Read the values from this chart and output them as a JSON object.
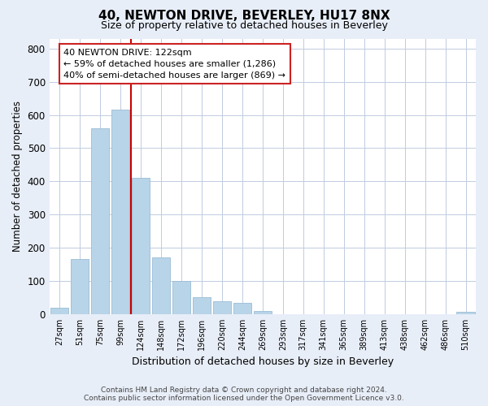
{
  "title": "40, NEWTON DRIVE, BEVERLEY, HU17 8NX",
  "subtitle": "Size of property relative to detached houses in Beverley",
  "xlabel": "Distribution of detached houses by size in Beverley",
  "ylabel": "Number of detached properties",
  "bar_labels": [
    "27sqm",
    "51sqm",
    "75sqm",
    "99sqm",
    "124sqm",
    "148sqm",
    "172sqm",
    "196sqm",
    "220sqm",
    "244sqm",
    "269sqm",
    "293sqm",
    "317sqm",
    "341sqm",
    "365sqm",
    "389sqm",
    "413sqm",
    "438sqm",
    "462sqm",
    "486sqm",
    "510sqm"
  ],
  "bar_values": [
    20,
    165,
    560,
    615,
    410,
    170,
    100,
    50,
    40,
    33,
    10,
    0,
    0,
    0,
    0,
    0,
    0,
    0,
    0,
    0,
    8
  ],
  "bar_color": "#b8d4e8",
  "bar_edge_color": "#9abcd4",
  "property_line_index": 3.5,
  "property_line_color": "#cc0000",
  "ylim": [
    0,
    830
  ],
  "yticks": [
    0,
    100,
    200,
    300,
    400,
    500,
    600,
    700,
    800
  ],
  "annotation_text_line1": "40 NEWTON DRIVE: 122sqm",
  "annotation_text_line2": "← 59% of detached houses are smaller (1,286)",
  "annotation_text_line3": "40% of semi-detached houses are larger (869) →",
  "footnote_line1": "Contains HM Land Registry data © Crown copyright and database right 2024.",
  "footnote_line2": "Contains public sector information licensed under the Open Government Licence v3.0.",
  "bg_color": "#e8eef8",
  "plot_bg_color": "#ffffff",
  "grid_color": "#c0cce0",
  "title_fontsize": 11,
  "subtitle_fontsize": 9,
  "ylabel_fontsize": 8.5,
  "xlabel_fontsize": 9,
  "annot_fontsize": 8,
  "footnote_fontsize": 6.5
}
